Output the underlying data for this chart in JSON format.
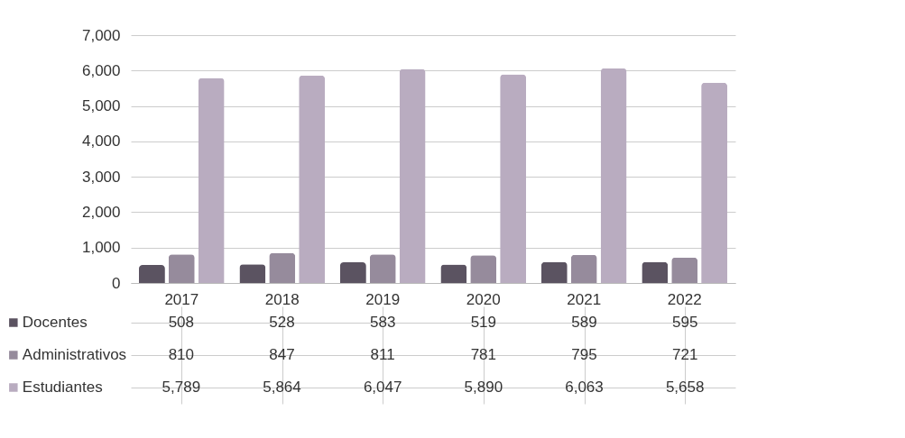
{
  "chart_data": {
    "type": "bar",
    "categories": [
      "2017",
      "2018",
      "2019",
      "2020",
      "2021",
      "2022"
    ],
    "series": [
      {
        "name": "Docentes",
        "color": "#5b5361",
        "values": [
          508,
          528,
          583,
          519,
          589,
          595
        ],
        "value_labels": [
          "508",
          "528",
          "583",
          "519",
          "589",
          "595"
        ]
      },
      {
        "name": "Administrativos",
        "color": "#968b9c",
        "values": [
          810,
          847,
          811,
          781,
          795,
          721
        ],
        "value_labels": [
          "810",
          "847",
          "811",
          "781",
          "795",
          "721"
        ]
      },
      {
        "name": "Estudiantes",
        "color": "#b9acc0",
        "values": [
          5789,
          5864,
          6047,
          5890,
          6063,
          5658
        ],
        "value_labels": [
          "5,789",
          "5,864",
          "6,047",
          "5,890",
          "6,063",
          "5,658"
        ]
      }
    ],
    "ylim": [
      0,
      7000
    ],
    "yticks": [
      0,
      {
        "value": 1000,
        "label": "1,000"
      },
      {
        "value": 2000,
        "label": "2,000"
      },
      {
        "value": 3000,
        "label": "3,000"
      },
      {
        "value": 4000,
        "label": "4,000"
      },
      {
        "value": 5000,
        "label": "5,000"
      },
      {
        "value": 6000,
        "label": "6,000"
      },
      {
        "value": 7000,
        "label": "7,000"
      }
    ],
    "grid": "y",
    "legend": "bottom left"
  }
}
